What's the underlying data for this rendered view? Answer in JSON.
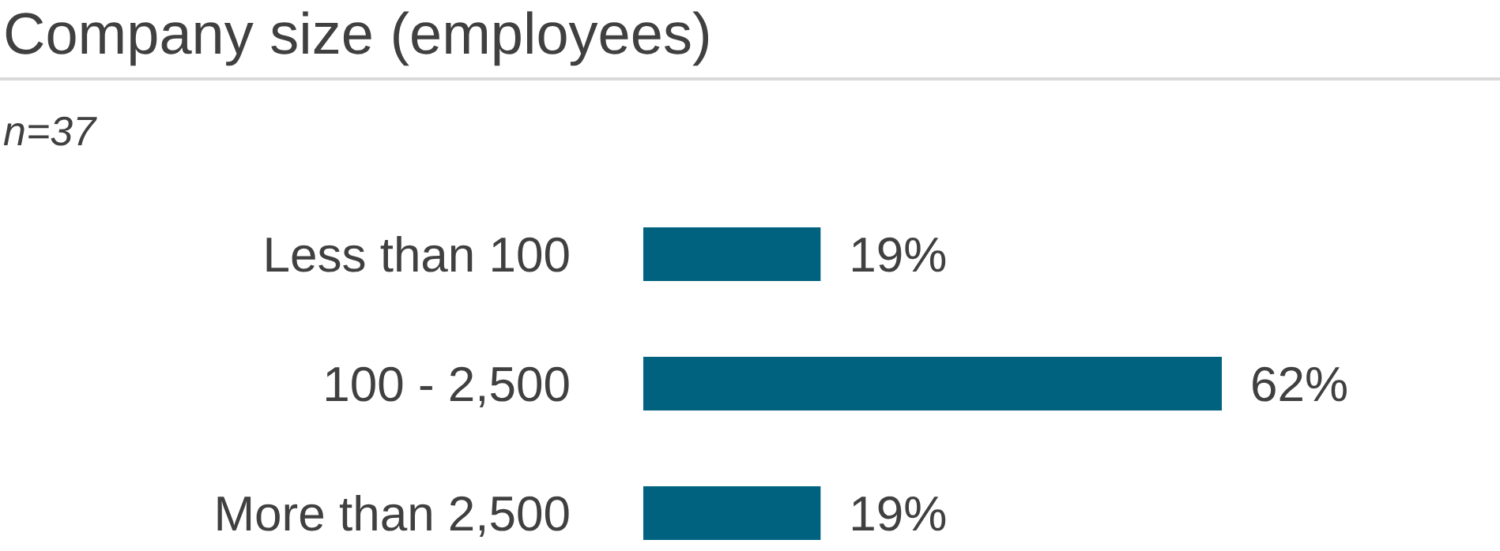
{
  "chart_data": {
    "type": "bar",
    "orientation": "horizontal",
    "title": "Company size (employees)",
    "subtitle": "n=37",
    "categories": [
      "Less than 100",
      "100 - 2,500",
      "More than 2,500"
    ],
    "values": [
      19,
      62,
      19
    ],
    "value_labels": [
      "19%",
      "62%",
      "19%"
    ],
    "color": "#00627f",
    "grid": false
  }
}
